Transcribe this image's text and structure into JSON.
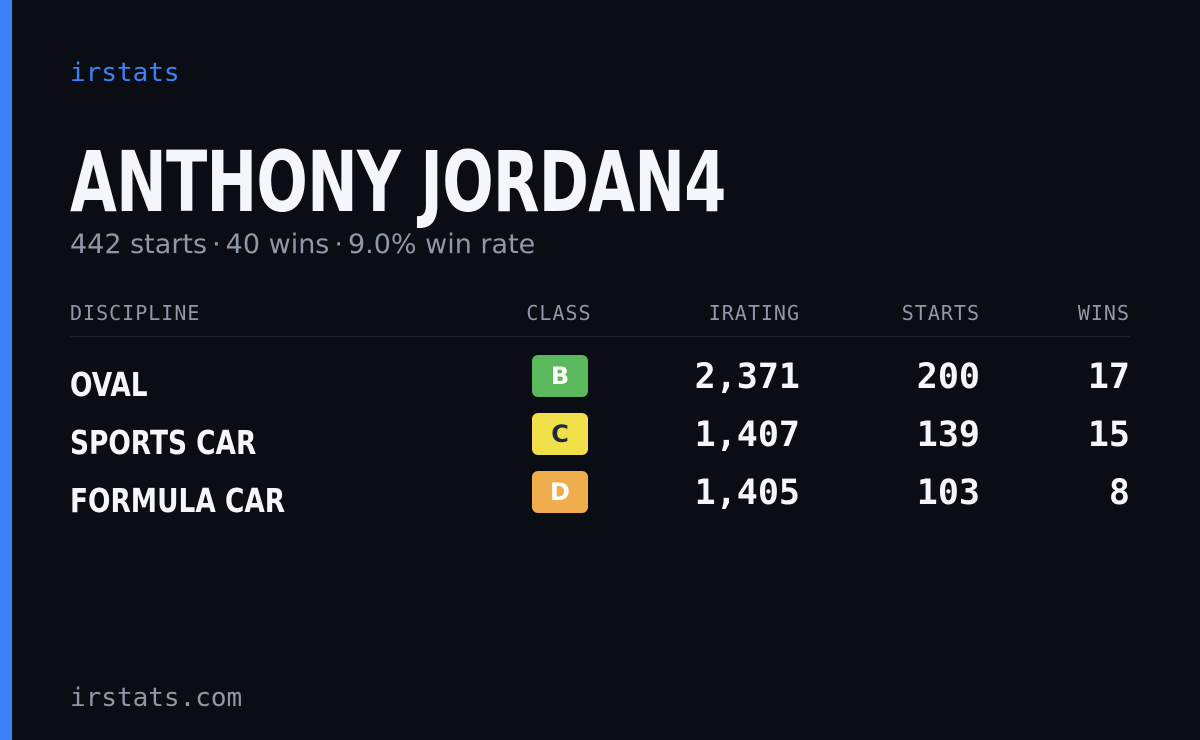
{
  "brand": "irstats",
  "player": {
    "name": "ANTHONY JORDAN4",
    "starts_text": "442 starts",
    "wins_text": "40 wins",
    "winrate_text": "9.0% win rate",
    "separator": "·"
  },
  "table": {
    "headers": {
      "discipline": "DISCIPLINE",
      "class": "CLASS",
      "irating": "IRATING",
      "starts": "STARTS",
      "wins": "WINS"
    },
    "rows": [
      {
        "discipline": "OVAL",
        "class": "B",
        "class_color": "#5cb85c",
        "class_text_dark": false,
        "irating": "2,371",
        "starts": "200",
        "wins": "17"
      },
      {
        "discipline": "SPORTS CAR",
        "class": "C",
        "class_color": "#f0e04a",
        "class_text_dark": true,
        "irating": "1,407",
        "starts": "139",
        "wins": "15"
      },
      {
        "discipline": "FORMULA CAR",
        "class": "D",
        "class_color": "#f0ad4e",
        "class_text_dark": false,
        "irating": "1,405",
        "starts": "103",
        "wins": "8"
      }
    ]
  },
  "footer": "irstats.com",
  "colors": {
    "accent": "#3b82f6",
    "background": "#0a0d14",
    "text_primary": "#f4f6fb",
    "text_muted": "#8f98a8"
  }
}
